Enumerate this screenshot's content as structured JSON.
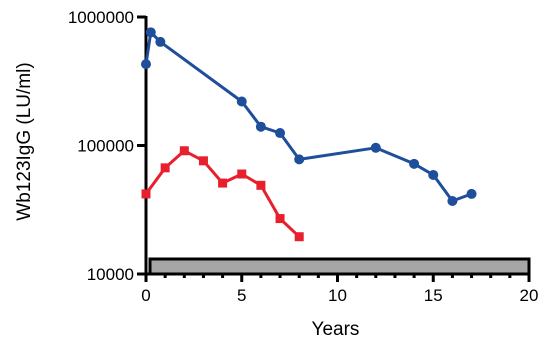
{
  "chart_data": {
    "type": "line",
    "title": "",
    "xlabel": "Years",
    "ylabel": "Wb123IgG (LU/ml)",
    "x_scale": "linear",
    "y_scale": "log",
    "xlim": [
      0,
      20
    ],
    "ylim": [
      10000,
      1000000
    ],
    "x_ticks": [
      0,
      5,
      10,
      15,
      20
    ],
    "x_tick_labels": [
      "0",
      "5",
      "10",
      "15",
      "20"
    ],
    "y_ticks": [
      10000,
      100000,
      1000000
    ],
    "y_tick_labels": [
      "10000",
      "100000",
      "1000000"
    ],
    "grid": false,
    "legend": "none",
    "bar_band": {
      "x_start": 0,
      "x_end": 20,
      "color": "#a6a6a6"
    },
    "series": [
      {
        "color": "#1f4e9a",
        "marker": "circle",
        "x": [
          0,
          0.25,
          0.75,
          5,
          6,
          7,
          8,
          12,
          14,
          15,
          16,
          17
        ],
        "y": [
          430000,
          760000,
          640000,
          220000,
          140000,
          125000,
          78000,
          96000,
          72000,
          59000,
          37000,
          42000
        ]
      },
      {
        "color": "#e8202e",
        "marker": "square",
        "x": [
          0,
          1,
          2,
          3,
          4,
          5,
          6,
          7,
          8
        ],
        "y": [
          42000,
          67000,
          91000,
          76000,
          51000,
          60000,
          49000,
          27000,
          19500
        ]
      }
    ]
  }
}
